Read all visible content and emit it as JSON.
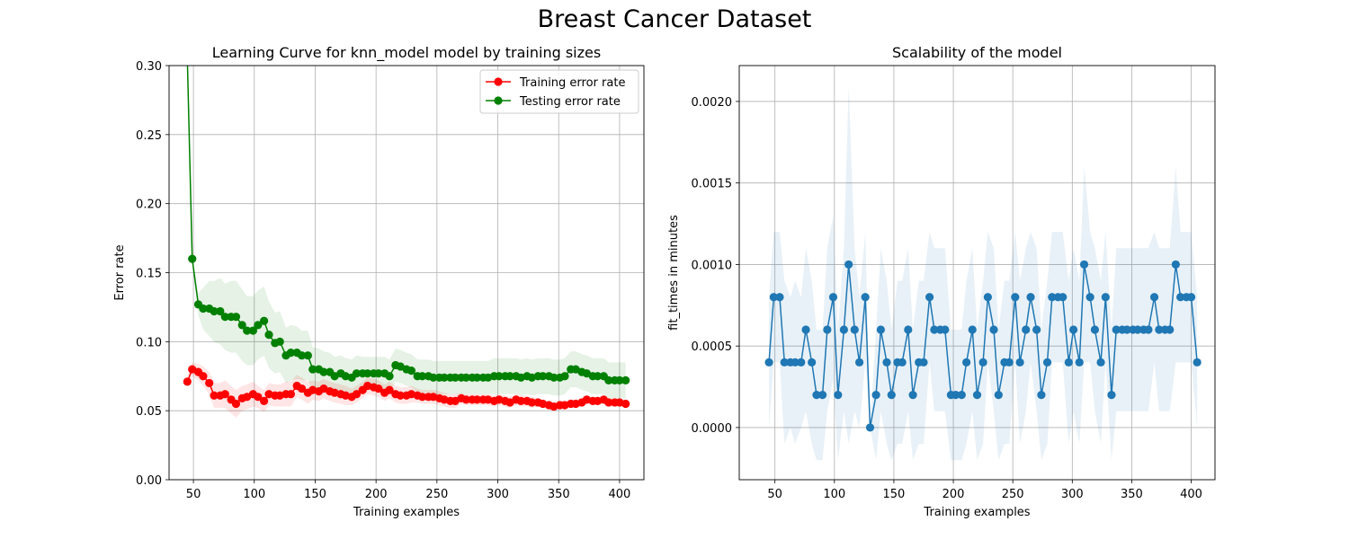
{
  "suptitle": "Breast Cancer Dataset",
  "colors": {
    "train": "#ff0000",
    "test": "#008000",
    "fit": "#1f77b4",
    "grid": "#b0b0b0"
  },
  "chart_data": [
    {
      "type": "line",
      "title": "Learning Curve for knn_model model by training sizes",
      "xlabel": "Training examples",
      "ylabel": "Error rate",
      "xlim": [
        30,
        420
      ],
      "ylim": [
        0,
        0.3
      ],
      "xticks": [
        50,
        100,
        150,
        200,
        250,
        300,
        350,
        400
      ],
      "yticks": [
        0.0,
        0.05,
        0.1,
        0.15,
        0.2,
        0.25,
        0.3
      ],
      "ytick_labels": [
        "0.00",
        "0.05",
        "0.10",
        "0.15",
        "0.20",
        "0.25",
        "0.30"
      ],
      "grid": true,
      "legend": "upper right",
      "x": [
        45,
        49,
        54,
        58,
        63,
        67,
        72,
        76,
        81,
        85,
        90,
        94,
        99,
        103,
        108,
        112,
        117,
        121,
        126,
        130,
        135,
        139,
        144,
        148,
        153,
        157,
        162,
        166,
        171,
        175,
        180,
        184,
        189,
        193,
        198,
        202,
        207,
        211,
        216,
        220,
        225,
        229,
        234,
        238,
        243,
        247,
        252,
        256,
        261,
        265,
        270,
        274,
        279,
        283,
        288,
        292,
        297,
        301,
        306,
        310,
        315,
        319,
        324,
        328,
        333,
        337,
        342,
        346,
        351,
        355,
        360,
        364,
        369,
        373,
        378,
        382,
        387,
        391,
        396,
        400,
        405
      ],
      "series": [
        {
          "name": "Training error rate",
          "values": [
            0.071,
            0.08,
            0.078,
            0.075,
            0.07,
            0.061,
            0.061,
            0.062,
            0.058,
            0.055,
            0.059,
            0.06,
            0.062,
            0.06,
            0.057,
            0.062,
            0.061,
            0.061,
            0.062,
            0.062,
            0.068,
            0.066,
            0.063,
            0.065,
            0.064,
            0.066,
            0.064,
            0.063,
            0.062,
            0.061,
            0.06,
            0.062,
            0.065,
            0.068,
            0.067,
            0.066,
            0.063,
            0.065,
            0.062,
            0.061,
            0.061,
            0.062,
            0.061,
            0.06,
            0.06,
            0.06,
            0.059,
            0.058,
            0.057,
            0.057,
            0.059,
            0.058,
            0.058,
            0.058,
            0.058,
            0.058,
            0.057,
            0.058,
            0.057,
            0.056,
            0.058,
            0.057,
            0.057,
            0.056,
            0.056,
            0.055,
            0.054,
            0.053,
            0.054,
            0.054,
            0.055,
            0.055,
            0.056,
            0.058,
            0.057,
            0.057,
            0.058,
            0.056,
            0.056,
            0.056,
            0.055
          ],
          "spread": [
            0.004,
            0.005,
            0.006,
            0.007,
            0.008,
            0.009,
            0.009,
            0.01,
            0.01,
            0.01,
            0.009,
            0.009,
            0.009,
            0.008,
            0.008,
            0.008,
            0.008,
            0.008,
            0.009,
            0.009,
            0.008,
            0.008,
            0.008,
            0.007,
            0.007,
            0.007,
            0.007,
            0.007,
            0.007,
            0.007,
            0.006,
            0.006,
            0.006,
            0.006,
            0.006,
            0.006,
            0.006,
            0.006,
            0.006,
            0.006,
            0.006,
            0.006,
            0.005,
            0.005,
            0.005,
            0.005,
            0.005,
            0.005,
            0.005,
            0.005,
            0.004,
            0.004,
            0.004,
            0.004,
            0.004,
            0.004,
            0.004,
            0.004,
            0.004,
            0.004,
            0.004,
            0.004,
            0.004,
            0.004,
            0.003,
            0.003,
            0.003,
            0.003,
            0.003,
            0.003,
            0.003,
            0.003,
            0.003,
            0.003,
            0.003,
            0.003,
            0.003,
            0.003,
            0.003,
            0.003,
            0.003
          ]
        },
        {
          "name": "Testing error rate",
          "values": [
            0.305,
            0.16,
            0.127,
            0.124,
            0.124,
            0.122,
            0.122,
            0.118,
            0.118,
            0.118,
            0.112,
            0.108,
            0.108,
            0.112,
            0.115,
            0.105,
            0.099,
            0.1,
            0.09,
            0.092,
            0.092,
            0.09,
            0.09,
            0.08,
            0.08,
            0.078,
            0.078,
            0.075,
            0.077,
            0.075,
            0.074,
            0.077,
            0.077,
            0.077,
            0.077,
            0.077,
            0.077,
            0.075,
            0.083,
            0.082,
            0.08,
            0.079,
            0.075,
            0.075,
            0.075,
            0.074,
            0.074,
            0.074,
            0.074,
            0.074,
            0.074,
            0.074,
            0.074,
            0.074,
            0.074,
            0.074,
            0.075,
            0.075,
            0.075,
            0.075,
            0.075,
            0.074,
            0.075,
            0.074,
            0.075,
            0.075,
            0.075,
            0.074,
            0.074,
            0.075,
            0.08,
            0.08,
            0.078,
            0.077,
            0.075,
            0.075,
            0.075,
            0.072,
            0.072,
            0.072,
            0.072
          ],
          "spread": [
            0.0,
            0.004,
            0.008,
            0.015,
            0.02,
            0.022,
            0.024,
            0.024,
            0.026,
            0.026,
            0.026,
            0.025,
            0.025,
            0.025,
            0.025,
            0.024,
            0.022,
            0.022,
            0.02,
            0.02,
            0.019,
            0.018,
            0.018,
            0.016,
            0.015,
            0.015,
            0.014,
            0.014,
            0.013,
            0.013,
            0.013,
            0.013,
            0.012,
            0.012,
            0.012,
            0.012,
            0.012,
            0.012,
            0.012,
            0.012,
            0.012,
            0.012,
            0.012,
            0.012,
            0.012,
            0.012,
            0.012,
            0.012,
            0.012,
            0.012,
            0.012,
            0.012,
            0.012,
            0.012,
            0.012,
            0.012,
            0.013,
            0.013,
            0.013,
            0.013,
            0.013,
            0.013,
            0.013,
            0.013,
            0.013,
            0.013,
            0.013,
            0.013,
            0.013,
            0.013,
            0.013,
            0.013,
            0.013,
            0.013,
            0.013,
            0.013,
            0.013,
            0.013,
            0.013,
            0.013,
            0.013
          ]
        }
      ]
    },
    {
      "type": "line",
      "title": "Scalability of the model",
      "xlabel": "Training examples",
      "ylabel": "fit_times in minutes",
      "xlim": [
        20,
        420
      ],
      "ylim": [
        -0.00032,
        0.00222
      ],
      "xticks": [
        50,
        100,
        150,
        200,
        250,
        300,
        350,
        400
      ],
      "yticks": [
        0.0,
        0.0005,
        0.001,
        0.0015,
        0.002
      ],
      "ytick_labels": [
        "0.0000",
        "0.0005",
        "0.0010",
        "0.0015",
        "0.0020"
      ],
      "grid": true,
      "x": [
        45,
        49,
        54,
        58,
        63,
        67,
        72,
        76,
        81,
        85,
        90,
        94,
        99,
        103,
        108,
        112,
        117,
        121,
        126,
        130,
        135,
        139,
        144,
        148,
        153,
        157,
        162,
        166,
        171,
        175,
        180,
        184,
        189,
        193,
        198,
        202,
        207,
        211,
        216,
        220,
        225,
        229,
        234,
        238,
        243,
        247,
        252,
        256,
        261,
        265,
        270,
        274,
        279,
        283,
        288,
        292,
        297,
        301,
        306,
        310,
        315,
        319,
        324,
        328,
        333,
        337,
        342,
        346,
        351,
        355,
        360,
        364,
        369,
        373,
        378,
        382,
        387,
        391,
        396,
        400,
        405
      ],
      "series": [
        {
          "name": "",
          "values": [
            0.0004,
            0.0008,
            0.0008,
            0.0004,
            0.0004,
            0.0004,
            0.0004,
            0.0006,
            0.0004,
            0.0002,
            0.0002,
            0.0006,
            0.0008,
            0.0002,
            0.0006,
            0.001,
            0.0006,
            0.0004,
            0.0008,
            0.0,
            0.0002,
            0.0006,
            0.0004,
            0.0002,
            0.0004,
            0.0004,
            0.0006,
            0.0002,
            0.0004,
            0.0004,
            0.0008,
            0.0006,
            0.0006,
            0.0006,
            0.0002,
            0.0002,
            0.0002,
            0.0004,
            0.0006,
            0.0002,
            0.0004,
            0.0008,
            0.0006,
            0.0002,
            0.0004,
            0.0004,
            0.0008,
            0.0004,
            0.0006,
            0.0008,
            0.0006,
            0.0002,
            0.0004,
            0.0008,
            0.0008,
            0.0008,
            0.0004,
            0.0006,
            0.0004,
            0.001,
            0.0008,
            0.0006,
            0.0004,
            0.0008,
            0.0002,
            0.0006,
            0.0006,
            0.0006,
            0.0006,
            0.0006,
            0.0006,
            0.0006,
            0.0008,
            0.0006,
            0.0006,
            0.0006,
            0.001,
            0.0008,
            0.0008,
            0.0008,
            0.0004
          ],
          "spread": [
            0.0004,
            0.0004,
            0.0004,
            0.0005,
            0.0004,
            0.0005,
            0.0004,
            0.0005,
            0.0005,
            0.0004,
            0.0004,
            0.0005,
            0.0005,
            0.0004,
            0.0005,
            0.0011,
            0.0005,
            0.0004,
            0.0004,
            0.0,
            0.0004,
            0.0005,
            0.0005,
            0.0004,
            0.0005,
            0.0005,
            0.0005,
            0.0004,
            0.0005,
            0.0005,
            0.0004,
            0.0005,
            0.0005,
            0.0005,
            0.0004,
            0.0004,
            0.0004,
            0.0005,
            0.0005,
            0.0004,
            0.0005,
            0.0004,
            0.0005,
            0.0004,
            0.0005,
            0.0005,
            0.0004,
            0.0005,
            0.0005,
            0.0004,
            0.0005,
            0.0004,
            0.0005,
            0.0004,
            0.0004,
            0.0004,
            0.0005,
            0.0005,
            0.0005,
            0.0006,
            0.0004,
            0.0005,
            0.0005,
            0.0004,
            0.0004,
            0.0005,
            0.0005,
            0.0005,
            0.0005,
            0.0005,
            0.0005,
            0.0005,
            0.0004,
            0.0005,
            0.0005,
            0.0005,
            0.0006,
            0.0004,
            0.0004,
            0.0004,
            0.0004
          ]
        }
      ]
    }
  ]
}
